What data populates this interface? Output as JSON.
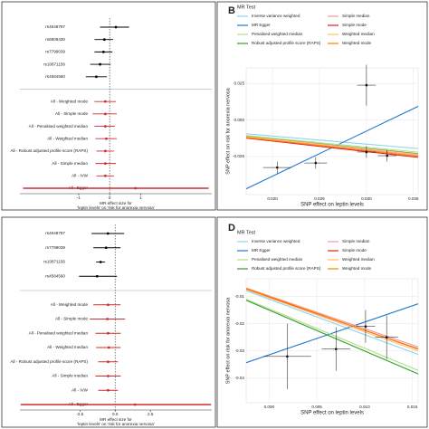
{
  "chart_data": [
    {
      "type": "forest",
      "categories": [
        "rs4648787",
        "rs6809430",
        "rs7799039",
        "rs10871156",
        "rs4584560",
        "All - Weighted mode",
        "All - Simple mode",
        "All - Penalised weighted median",
        "All - Weighted median",
        "All - Robust adjusted profile score (RAPS)",
        "All - Simple median",
        "All - IVW",
        "All - Egger"
      ],
      "values": [
        0.2,
        -0.17,
        -0.2,
        -0.31,
        -0.43,
        -0.14,
        -0.14,
        -0.14,
        -0.11,
        -0.14,
        -0.14,
        -0.14,
        0.83
      ],
      "lower": [
        -0.31,
        -0.49,
        -0.49,
        -0.63,
        -0.77,
        -0.49,
        -0.55,
        -0.49,
        -0.46,
        -0.43,
        -0.46,
        -0.43,
        -2.8
      ],
      "upper": [
        0.63,
        0.11,
        0.09,
        0.03,
        -0.09,
        0.2,
        0.23,
        0.17,
        0.23,
        0.14,
        0.2,
        0.14,
        3.2
      ],
      "colors": [
        "#000000",
        "#000000",
        "#000000",
        "#000000",
        "#000000",
        "#d42a2a",
        "#d42a2a",
        "#d42a2a",
        "#d42a2a",
        "#d42a2a",
        "#d42a2a",
        "#d42a2a",
        "#d42a2a"
      ],
      "xlim": [
        -2.9,
        3.3
      ],
      "xticks": [
        -1,
        0,
        1
      ],
      "xlabel": [
        "MR effect size for",
        "'leptin levels' on 'risk for anorexia nervosa'"
      ]
    },
    {
      "type": "mr_scatter",
      "panel_label": "B",
      "legend_title": "MR Test",
      "x": [
        0.0205,
        0.0246,
        0.03,
        0.0322,
        0.03
      ],
      "y": [
        -0.0325,
        -0.0294,
        -0.0219,
        -0.0244,
        0.0238
      ],
      "xerr": [
        0.0015,
        0.0012,
        0.001,
        0.001,
        0.001
      ],
      "yerr": [
        0.004,
        0.004,
        0.004,
        0.004,
        0.014
      ],
      "lines": [
        {
          "name": "Inverse variance weighted",
          "color": "#8fd4ee",
          "slope": -0.55,
          "intercept": 0
        },
        {
          "name": "MR Egger",
          "color": "#1f78d1",
          "slope": 3.08,
          "intercept": -0.1
        },
        {
          "name": "Penalised weighted median",
          "color": "#b2df8a",
          "slope": -0.62,
          "intercept": 0
        },
        {
          "name": "Robust adjusted profile score (RAPS)",
          "color": "#33a02c",
          "slope": -0.65,
          "intercept": 0
        },
        {
          "name": "Simple median",
          "color": "#f49a99",
          "slope": -0.68,
          "intercept": 0
        },
        {
          "name": "Simple mode",
          "color": "#e31a1c",
          "slope": -0.72,
          "intercept": 0
        },
        {
          "name": "Weighted median",
          "color": "#fdbf6f",
          "slope": -0.66,
          "intercept": 0
        },
        {
          "name": "Weighted mode",
          "color": "#ff7f00",
          "slope": -0.7,
          "intercept": 0
        }
      ],
      "xlabel": "SNP effect on leptin levels",
      "ylabel": "SNP effect on risk for anorexia nervosa",
      "xlim": [
        0.0172,
        0.0355
      ],
      "ylim": [
        -0.051,
        0.0356
      ],
      "xticks": [
        {
          "value": 0.02,
          "label": "0.020"
        },
        0.025,
        {
          "value": 0.03,
          "label": "0.030"
        },
        0.035
      ],
      "yticks": [
        -0.025,
        {
          "value": 0,
          "label": "0.000"
        },
        0.025
      ],
      "grid": true
    },
    {
      "type": "forest",
      "categories": [
        "rs4648787",
        "rs7799039",
        "rs10871156",
        "rs4584560",
        "All - Weighted mode",
        "All - Simple mode",
        "All - Penalised weighted median",
        "All - Weighted median",
        "All - Robust adjusted profile score (RAPS)",
        "All - Simple median",
        "All - IVW",
        "All - Egger"
      ],
      "values": [
        -0.51,
        -0.64,
        -1.03,
        -1.28,
        -0.5,
        -0.55,
        -0.5,
        -0.45,
        -0.5,
        -0.5,
        -0.5,
        1.41
      ],
      "lower": [
        -1.67,
        -1.54,
        -1.35,
        -2.56,
        -1.54,
        -1.8,
        -1.4,
        -1.35,
        -1.2,
        -1.4,
        -1.2,
        -6.7
      ],
      "upper": [
        0.64,
        0.38,
        -0.71,
        0.13,
        0.38,
        0.7,
        0.4,
        0.38,
        0.2,
        0.4,
        0.2,
        6.8
      ],
      "colors": [
        "#000000",
        "#000000",
        "#000000",
        "#000000",
        "#d42a2a",
        "#d42a2a",
        "#d42a2a",
        "#d42a2a",
        "#d42a2a",
        "#d42a2a",
        "#d42a2a",
        "#d42a2a"
      ],
      "xlim": [
        -6.75,
        6.85
      ],
      "xticks": [
        -2.5,
        {
          "value": 0,
          "label": "0.0"
        },
        2.5
      ],
      "xlabel": [
        "MR effect size for",
        "'leptin levels' on 'risk for anorexia nervosa'"
      ]
    },
    {
      "type": "mr_scatter",
      "panel_label": "D",
      "legend_title": "MR Test",
      "x": [
        0.0019,
        0.007,
        0.0101,
        0.0123
      ],
      "y": [
        -0.032,
        -0.0293,
        -0.021,
        -0.025
      ],
      "xerr": [
        0.0025,
        0.0015,
        0.001,
        0.0012
      ],
      "yerr": [
        0.012,
        0.008,
        0.006,
        0.008
      ],
      "lines": [
        {
          "name": "Inverse variance weighted",
          "color": "#8fd4ee",
          "slope": -1.3,
          "intercept": -0.011
        },
        {
          "name": "MR Egger",
          "color": "#1f78d1",
          "slope": 1.2,
          "intercept": -0.0314
        },
        {
          "name": "Penalised weighted median",
          "color": "#b2df8a",
          "slope": -1.45,
          "intercept": -0.0145
        },
        {
          "name": "Robust adjusted profile score (RAPS)",
          "color": "#33a02c",
          "slope": -1.5,
          "intercept": -0.015
        },
        {
          "name": "Simple median",
          "color": "#f49a99",
          "slope": -1.2,
          "intercept": -0.0098
        },
        {
          "name": "Simple mode",
          "color": "#e31a1c",
          "slope": -1.22,
          "intercept": -0.0102
        },
        {
          "name": "Weighted median",
          "color": "#fdbf6f",
          "slope": -1.25,
          "intercept": -0.0105
        },
        {
          "name": "Weighted mode",
          "color": "#ff7f00",
          "slope": -1.24,
          "intercept": -0.01
        }
      ],
      "xlabel": "SNP effect on leptin levels",
      "ylabel": "SNP effect on risk for anorexia nervosa",
      "xlim": [
        -0.0024,
        0.0156
      ],
      "ylim": [
        -0.049,
        -0.0035
      ],
      "xticks": [
        {
          "value": 0,
          "label": "0.000"
        },
        0.005,
        {
          "value": 0.01,
          "label": "0.010"
        },
        0.015
      ],
      "yticks": [
        -0.04,
        -0.03,
        -0.02,
        -0.01
      ],
      "grid": true
    }
  ]
}
